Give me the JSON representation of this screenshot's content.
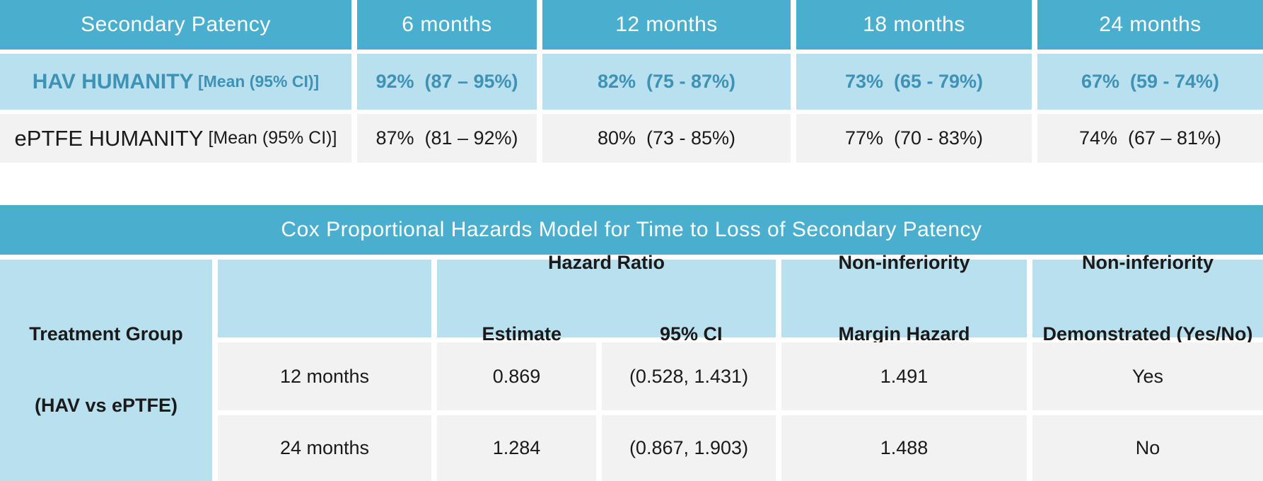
{
  "colors": {
    "teal_header": "#4AAFCE",
    "light_blue": "#B9E0EE",
    "row_gray": "#F2F2F2",
    "hav_text_teal": "#3D92B6",
    "body_text": "#1A1A1A",
    "header_text": "#FFFFFF"
  },
  "patency": {
    "title": "Secondary Patency",
    "columns": [
      "6 months",
      "12 months",
      "18 months",
      "24 months"
    ],
    "hav": {
      "name": "HAV HUMANITY",
      "note": " [Mean (95% CI)]",
      "values": [
        "92%  (87 – 95%)",
        "82%  (75 - 87%)",
        "73%  (65 - 79%)",
        "67%  (59 - 74%)"
      ]
    },
    "eptfe": {
      "name": "ePTFE HUMANITY",
      "note": " [Mean (95% CI)]",
      "values": [
        "87%  (81 – 92%)",
        "80%  (73 - 85%)",
        "77%  (70 - 83%)",
        "74%  (67 – 81%)"
      ]
    }
  },
  "cox": {
    "title": "Cox Proportional Hazards Model for Time to Loss of Secondary Patency",
    "treatment_group": {
      "line1": "Treatment Group",
      "line2": "(HAV vs ePTFE)"
    },
    "headers": {
      "hazard_ratio": "Hazard Ratio",
      "estimate": "Estimate",
      "ci": "95% CI",
      "margin_line1": "Non-inferiority",
      "margin_line2": "Margin Hazard",
      "demo_line1": "Non-inferiority",
      "demo_line2": "Demonstrated (Yes/No)"
    },
    "rows": [
      {
        "timepoint": "12 months",
        "estimate": "0.869",
        "ci": "(0.528, 1.431)",
        "margin": "1.491",
        "demonstrated": "Yes"
      },
      {
        "timepoint": "24 months",
        "estimate": "1.284",
        "ci": "(0.867, 1.903)",
        "margin": "1.488",
        "demonstrated": "No"
      }
    ]
  }
}
